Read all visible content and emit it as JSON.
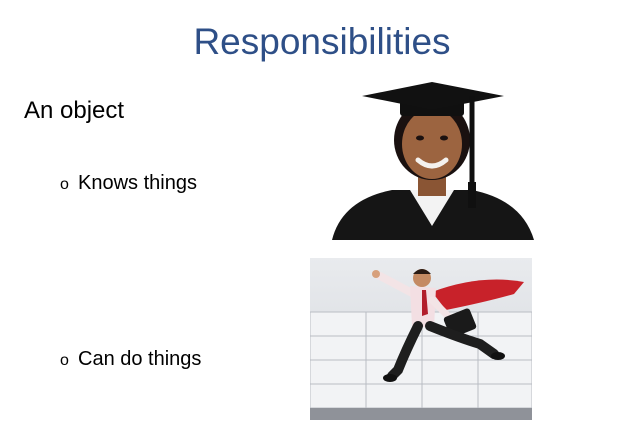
{
  "slide": {
    "title": "Responsibilities",
    "heading": "An object",
    "bullets": [
      {
        "marker": "o",
        "text": "Knows things"
      },
      {
        "marker": "o",
        "text": "Can do things"
      }
    ]
  },
  "images": {
    "graduate": {
      "icon": "graduate-photo"
    },
    "superhero": {
      "icon": "flying-businessman-photo"
    }
  },
  "colors": {
    "title": "#2e4f87",
    "text": "#000000",
    "cape": "#c8222a"
  }
}
